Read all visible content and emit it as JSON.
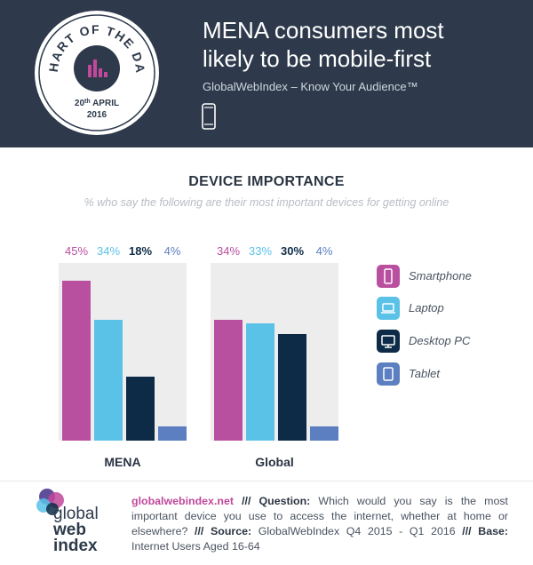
{
  "header": {
    "badge": {
      "top_text": "CHART OF THE DAY",
      "day": "20",
      "day_suffix": "th",
      "month": "APRIL",
      "year": "2016"
    },
    "title_line1": "MENA consumers most",
    "title_line2": "likely to be mobile-first",
    "source": "GlobalWebIndex – Know Your Audience™"
  },
  "chart_data": {
    "type": "bar",
    "title": "DEVICE IMPORTANCE",
    "subtitle": "% who say the following are their most important devices for getting online",
    "ylim": [
      0,
      50
    ],
    "series": [
      {
        "name": "Smartphone",
        "color": "#b94f9f"
      },
      {
        "name": "Laptop",
        "color": "#5bc2e7"
      },
      {
        "name": "Desktop PC",
        "color": "#0d2b47"
      },
      {
        "name": "Tablet",
        "color": "#5b7fc0"
      }
    ],
    "groups": [
      {
        "name": "MENA",
        "values": [
          45,
          34,
          18,
          4
        ],
        "labels": [
          "45%",
          "34%",
          "18%",
          "4%"
        ]
      },
      {
        "name": "Global",
        "values": [
          34,
          33,
          30,
          4
        ],
        "labels": [
          "34%",
          "33%",
          "30%",
          "4%"
        ]
      }
    ],
    "legend_position": "right",
    "grid": false
  },
  "legend": [
    {
      "label": "Smartphone",
      "color": "#b94f9f",
      "icon": "smartphone-icon"
    },
    {
      "label": "Laptop",
      "color": "#5bc2e7",
      "icon": "laptop-icon"
    },
    {
      "label": "Desktop PC",
      "color": "#0d2b47",
      "icon": "desktop-icon"
    },
    {
      "label": "Tablet",
      "color": "#5b7fc0",
      "icon": "tablet-icon"
    }
  ],
  "footer": {
    "logo": {
      "line1": "global",
      "line2": "web",
      "line3": "index"
    },
    "site": "globalwebindex.net",
    "sep": " /// ",
    "question_label": "Question:",
    "question_text": " Which would you say is the most important device you use to access the internet, whether at home or elsewhere?",
    "source_label": "Source:",
    "source_text": " GlobalWebIndex Q4 2015 - Q1 2016",
    "base_label": "Base:",
    "base_text": " Internet Users Aged 16-64"
  }
}
